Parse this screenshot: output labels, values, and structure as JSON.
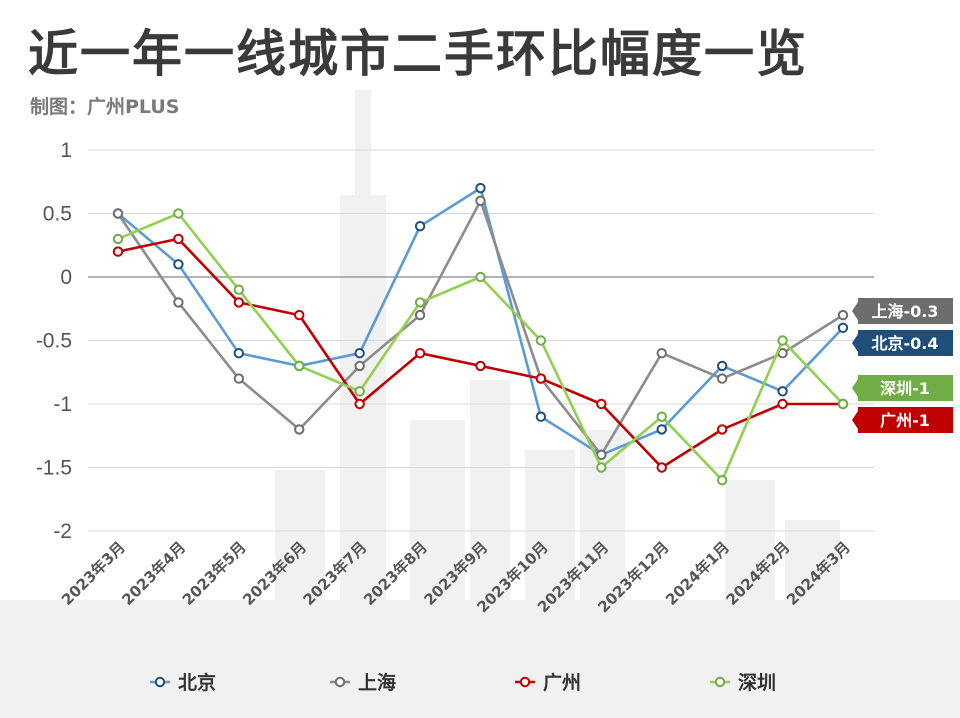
{
  "title": "近一年一线城市二手环比幅度一览",
  "subtitle": "制图：广州PLUS",
  "colors": {
    "grid": "#d9d9d9",
    "zero": "#9a9a9a",
    "skyline": "#f0f0f0"
  },
  "chart_data": {
    "type": "line",
    "title": "近一年一线城市二手环比幅度一览",
    "xlabel": "",
    "ylabel": "",
    "ylim": [
      -2,
      1
    ],
    "yticks": [
      {
        "value": 1,
        "label": "1"
      },
      {
        "value": 0.5,
        "label": "0.5"
      },
      {
        "value": 0,
        "label": "0"
      },
      {
        "value": -0.5,
        "label": "-0.5"
      },
      {
        "value": -1,
        "label": "-1"
      },
      {
        "value": -1.5,
        "label": "-1.5"
      },
      {
        "value": -2,
        "label": "-2"
      }
    ],
    "grid": true,
    "legend_position": "bottom",
    "categories": [
      "2023年3月",
      "2023年4月",
      "2023年5月",
      "2023年6月",
      "2023年7月",
      "2023年8月",
      "2023年9月",
      "2023年10月",
      "2023年11月",
      "2023年12月",
      "2024年1月",
      "2024年2月",
      "2024年3月"
    ],
    "series": [
      {
        "name": "北京",
        "color": "#5b9bd5",
        "marker_stroke": "#1f4e79",
        "values": [
          0.5,
          0.1,
          -0.6,
          -0.7,
          -0.6,
          0.4,
          0.7,
          -1.1,
          -1.4,
          -1.2,
          -0.7,
          -0.9,
          -0.4
        ],
        "end_label": "北京-0.4",
        "label_color": "#1f4e79"
      },
      {
        "name": "上海",
        "color": "#8c8c8c",
        "marker_stroke": "#6d6d6d",
        "values": [
          0.5,
          -0.2,
          -0.8,
          -1.2,
          -0.7,
          -0.3,
          0.6,
          -0.8,
          -1.4,
          -0.6,
          -0.8,
          -0.6,
          -0.3
        ],
        "end_label": "上海-0.3",
        "label_color": "#6d6d6d"
      },
      {
        "name": "广州",
        "color": "#c00000",
        "marker_stroke": "#c00000",
        "values": [
          0.2,
          0.3,
          -0.2,
          -0.3,
          -1.0,
          -0.6,
          -0.7,
          -0.8,
          -1.0,
          -1.5,
          -1.2,
          -1.0,
          -1.0
        ],
        "end_label": "广州-1",
        "label_color": "#c00000"
      },
      {
        "name": "深圳",
        "color": "#92d050",
        "marker_stroke": "#70ad47",
        "values": [
          0.3,
          0.5,
          -0.1,
          -0.7,
          -0.9,
          -0.2,
          0.0,
          -0.5,
          -1.5,
          -1.1,
          -1.6,
          -0.5,
          -1.0
        ],
        "end_label": "深圳-1",
        "label_color": "#70ad47"
      }
    ]
  }
}
